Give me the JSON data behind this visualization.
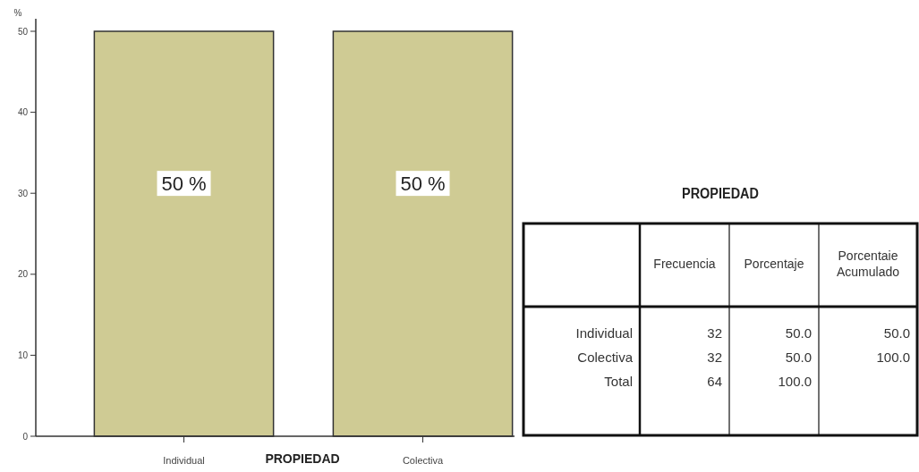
{
  "chart_data": [
    {
      "type": "bar",
      "xlabel": "PROPIEDAD",
      "ylabel": "%",
      "categories": [
        "Individual",
        "Colectiva"
      ],
      "values": [
        50,
        50
      ],
      "color": "#cfcb94",
      "ylim": [
        0,
        50
      ],
      "yticks": [
        0,
        10,
        20,
        30,
        40,
        50
      ],
      "value_labels": [
        "50 %",
        "50 %"
      ]
    },
    {
      "type": "other",
      "title": "PROPIEDAD",
      "annotations": [
        "Frecuencia",
        "Porcentaje",
        "Porcentaie Acumulado",
        "Individual",
        "32",
        "50.0",
        "50.0",
        "Colectiva",
        "32",
        "50.0",
        "100.0",
        "Total",
        "64",
        "100.0"
      ]
    }
  ]
}
